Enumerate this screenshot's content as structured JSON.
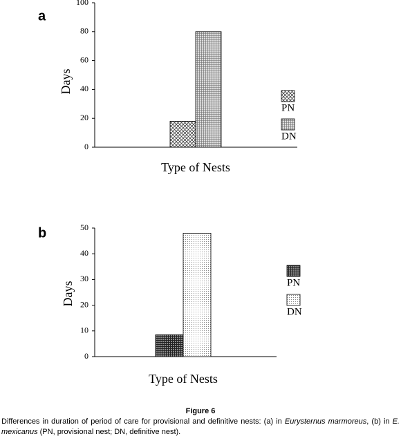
{
  "chart_data": [
    {
      "type": "bar",
      "panel": "a",
      "ylabel": "Days",
      "xlabel": "Type of Nests",
      "categories": [
        null
      ],
      "series": [
        {
          "name": "PN",
          "color": "#444444",
          "pattern": "crosshatch",
          "values": [
            18
          ]
        },
        {
          "name": "DN",
          "color": "#666666",
          "pattern": "fine-grid",
          "values": [
            80
          ]
        }
      ],
      "ylim": [
        0,
        100
      ],
      "yticks": [
        0,
        20,
        40,
        60,
        80,
        100
      ],
      "legend": "right"
    },
    {
      "type": "bar",
      "panel": "b",
      "ylabel": "Days",
      "xlabel": "Type of Nests",
      "categories": [
        null
      ],
      "series": [
        {
          "name": "PN",
          "color": "#222222",
          "pattern": "grid",
          "values": [
            8.5
          ]
        },
        {
          "name": "DN",
          "color": "#888888",
          "pattern": "dots",
          "values": [
            48
          ]
        }
      ],
      "ylim": [
        0,
        50
      ],
      "yticks": [
        0,
        10,
        20,
        30,
        40,
        50
      ],
      "legend": "right"
    }
  ],
  "figure": {
    "label": "Figure 6",
    "caption": [
      "Differences in duration of period of care for provisional and definitive nests: (a) in ",
      "Eurysternus marmoreus",
      ", (b) in ",
      "E. mexicanus",
      " (PN, provisional nest; DN, definitive nest)."
    ]
  }
}
